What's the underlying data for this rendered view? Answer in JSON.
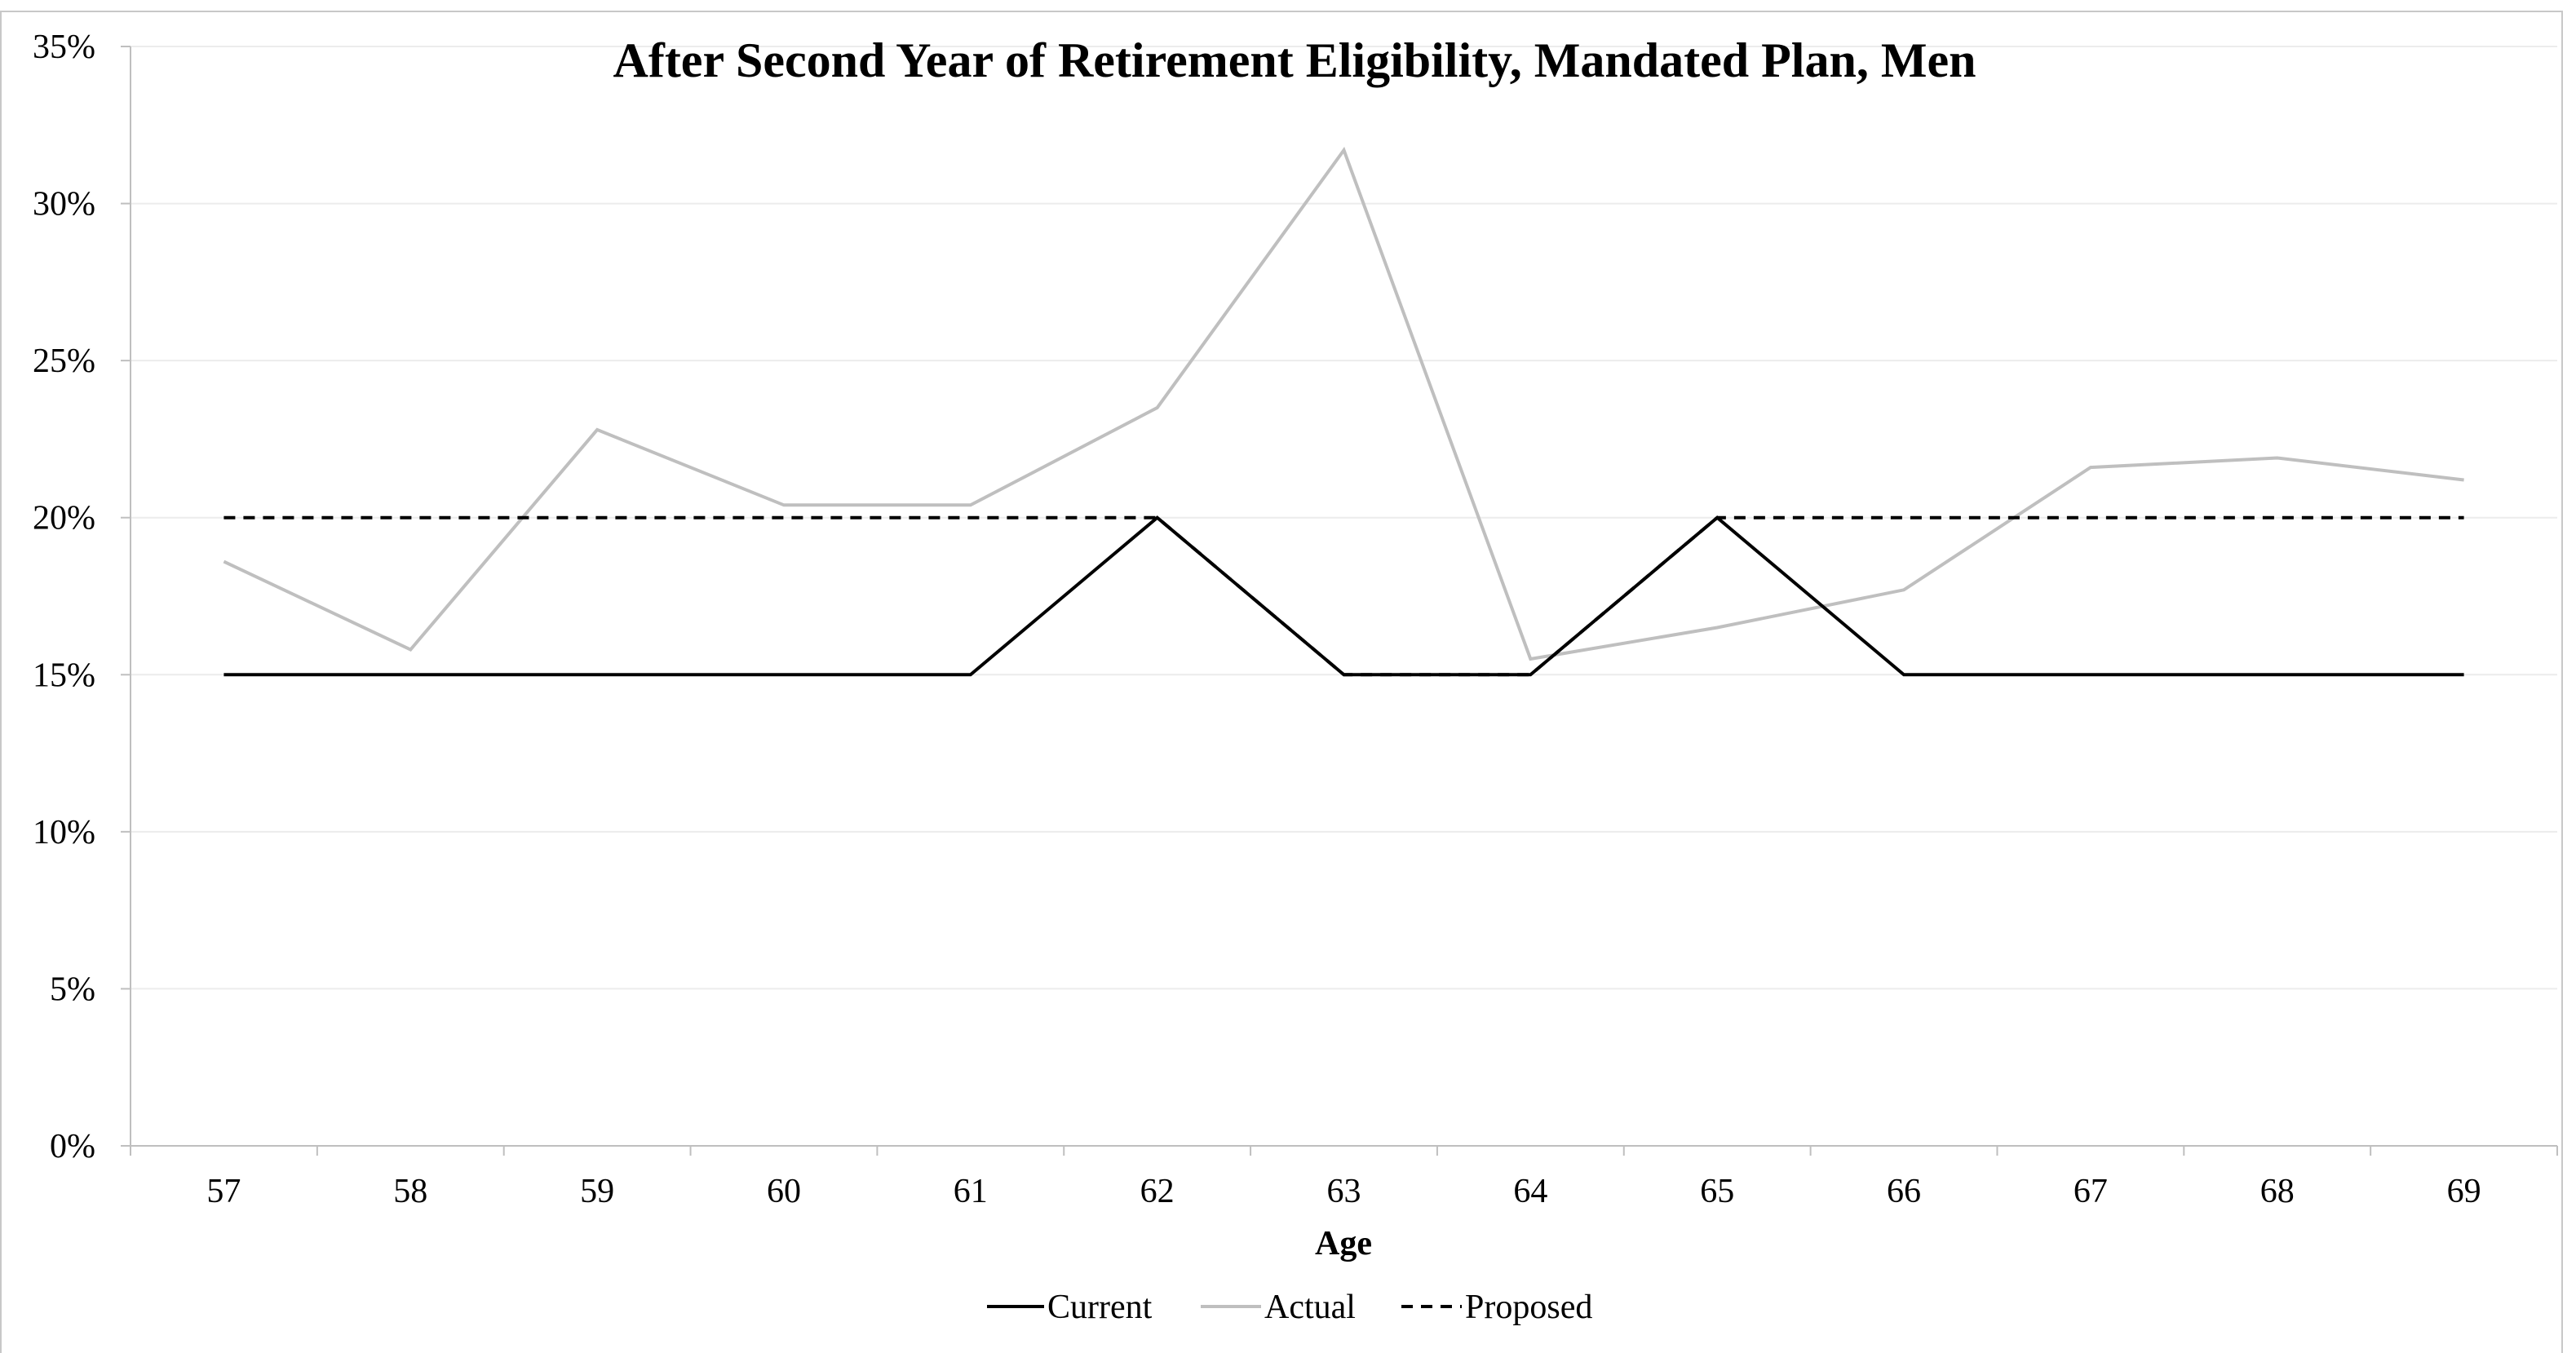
{
  "chart_data": {
    "type": "line",
    "title": "After Second Year of Retirement Eligibility, Mandated Plan, Men",
    "xlabel": "Age",
    "ylabel": "",
    "categories": [
      "57",
      "58",
      "59",
      "60",
      "61",
      "62",
      "63",
      "64",
      "65",
      "66",
      "67",
      "68",
      "69"
    ],
    "ylim": [
      0,
      0.35
    ],
    "yticks": [
      0,
      0.05,
      0.1,
      0.15,
      0.2,
      0.25,
      0.3,
      0.35
    ],
    "ytick_labels": [
      "0%",
      "5%",
      "10%",
      "15%",
      "20%",
      "25%",
      "30%",
      "35%"
    ],
    "grid": true,
    "legend_position": "bottom",
    "series": [
      {
        "name": "Current",
        "color": "#000000",
        "dash": "solid",
        "values": [
          0.15,
          0.15,
          0.15,
          0.15,
          0.15,
          0.2,
          0.15,
          0.15,
          0.2,
          0.15,
          0.15,
          0.15,
          0.15
        ]
      },
      {
        "name": "Actual",
        "color": "#bfbfbf",
        "dash": "solid",
        "values": [
          0.186,
          0.158,
          0.228,
          0.204,
          0.204,
          0.235,
          0.317,
          0.155,
          0.165,
          0.177,
          0.216,
          0.219,
          0.212
        ]
      },
      {
        "name": "Proposed",
        "color": "#000000",
        "dash": "dashed",
        "values": [
          0.2,
          0.2,
          0.2,
          0.2,
          0.2,
          0.2,
          0.15,
          0.15,
          0.2,
          0.2,
          0.2,
          0.2,
          0.2
        ]
      }
    ]
  }
}
